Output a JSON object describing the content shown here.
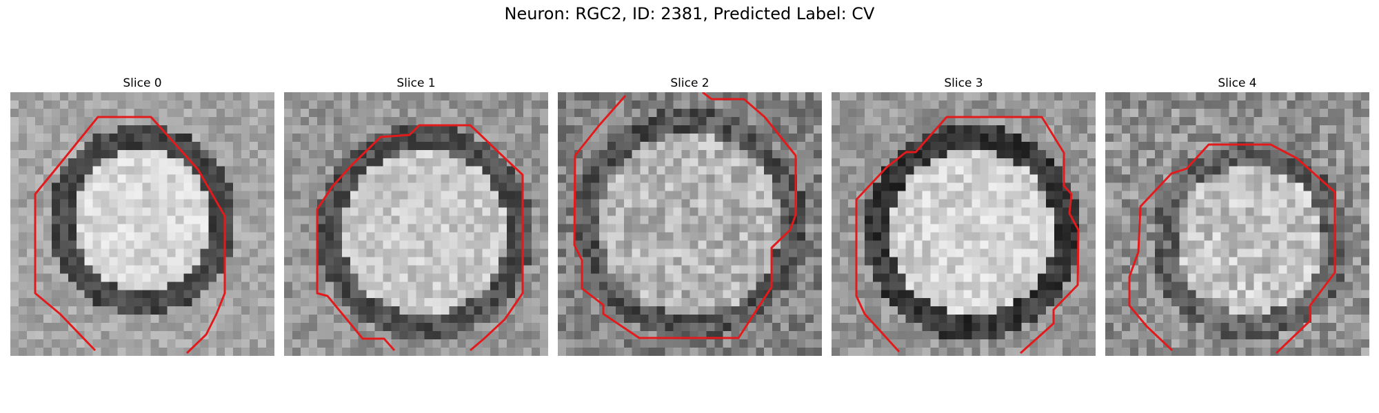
{
  "figure": {
    "title": "Neuron: RGC2, ID: 2381, Predicted Label: CV",
    "contour_color": "#e31a1c"
  },
  "panels": [
    {
      "title": "Slice 0"
    },
    {
      "title": "Slice 1"
    },
    {
      "title": "Slice 2"
    },
    {
      "title": "Slice 3"
    },
    {
      "title": "Slice 4"
    }
  ]
}
